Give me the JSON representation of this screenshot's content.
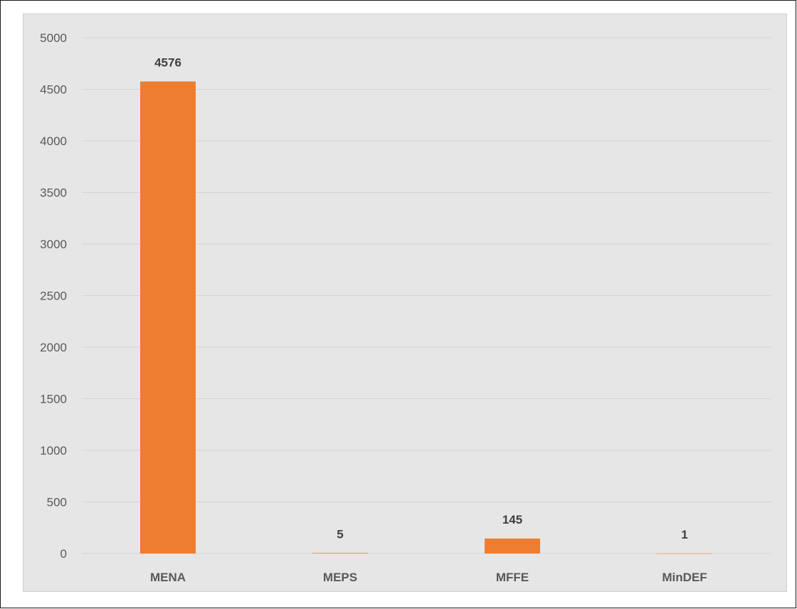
{
  "colors": {
    "bar": "#ed7d31",
    "plot_background": "#e7e6e6",
    "gridline": "#d4d4d4",
    "axis_text": "#595959",
    "data_label": "#404040"
  },
  "chart_data": {
    "type": "bar",
    "categories": [
      "MENA",
      "MEPS",
      "MFFE",
      "MinDEF"
    ],
    "values": [
      4576,
      5,
      145,
      1
    ],
    "data_labels": [
      "4576",
      "5",
      "145",
      "1"
    ],
    "title": "",
    "xlabel": "",
    "ylabel": "",
    "ylim": [
      0,
      5000
    ],
    "yticks": [
      0,
      500,
      1000,
      1500,
      2000,
      2500,
      3000,
      3500,
      4000,
      4500,
      5000
    ],
    "grid": true,
    "legend": "none"
  }
}
